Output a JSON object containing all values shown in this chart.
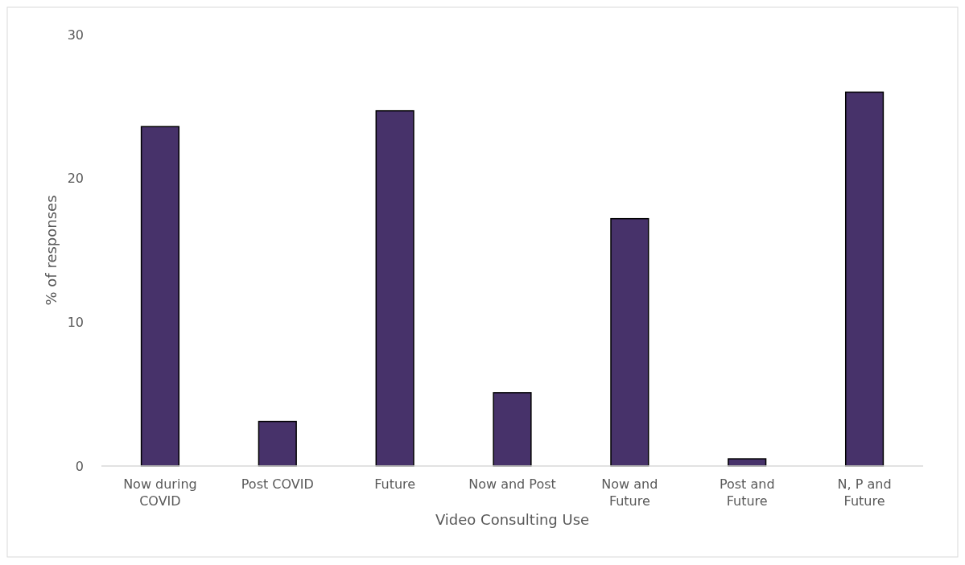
{
  "chart_data": {
    "type": "bar",
    "xlabel": "Video Consulting Use",
    "ylabel": "% of responses",
    "categories": [
      "Now during COVID",
      "Post COVID",
      "Future",
      "Now and Post",
      "Now and Future",
      "Post and Future",
      "N, P and Future"
    ],
    "values": [
      23.6,
      3.1,
      24.7,
      5.1,
      17.2,
      0.5,
      26.0
    ],
    "color": "#47326a",
    "ylim": [
      0,
      30
    ],
    "yticks": [
      0,
      10,
      20,
      30
    ],
    "grid": false
  }
}
